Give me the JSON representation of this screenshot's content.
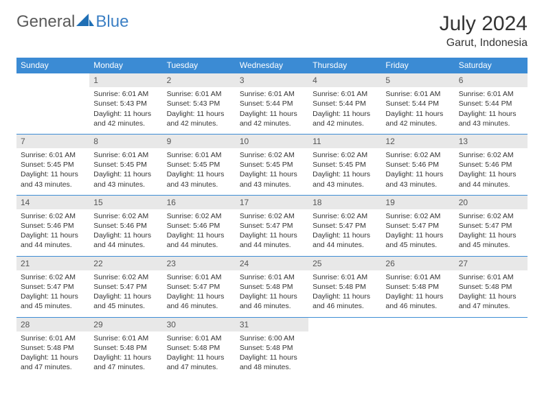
{
  "brand": {
    "general": "General",
    "blue": "Blue"
  },
  "title": "July 2024",
  "location": "Garut, Indonesia",
  "colors": {
    "header_bg": "#3b8bd4",
    "header_text": "#ffffff",
    "daynum_bg": "#e8e8e8",
    "week_border": "#3b8bd4",
    "logo_gray": "#5a5a5a",
    "logo_blue": "#3b7fc4",
    "body_text": "#333333",
    "background": "#ffffff"
  },
  "day_headers": [
    "Sunday",
    "Monday",
    "Tuesday",
    "Wednesday",
    "Thursday",
    "Friday",
    "Saturday"
  ],
  "labels": {
    "sunrise_prefix": "Sunrise: ",
    "sunset_prefix": "Sunset: ",
    "daylight_prefix": "Daylight: "
  },
  "weeks": [
    [
      null,
      {
        "n": "1",
        "sr": "6:01 AM",
        "ss": "5:43 PM",
        "dl": "11 hours and 42 minutes."
      },
      {
        "n": "2",
        "sr": "6:01 AM",
        "ss": "5:43 PM",
        "dl": "11 hours and 42 minutes."
      },
      {
        "n": "3",
        "sr": "6:01 AM",
        "ss": "5:44 PM",
        "dl": "11 hours and 42 minutes."
      },
      {
        "n": "4",
        "sr": "6:01 AM",
        "ss": "5:44 PM",
        "dl": "11 hours and 42 minutes."
      },
      {
        "n": "5",
        "sr": "6:01 AM",
        "ss": "5:44 PM",
        "dl": "11 hours and 42 minutes."
      },
      {
        "n": "6",
        "sr": "6:01 AM",
        "ss": "5:44 PM",
        "dl": "11 hours and 43 minutes."
      }
    ],
    [
      {
        "n": "7",
        "sr": "6:01 AM",
        "ss": "5:45 PM",
        "dl": "11 hours and 43 minutes."
      },
      {
        "n": "8",
        "sr": "6:01 AM",
        "ss": "5:45 PM",
        "dl": "11 hours and 43 minutes."
      },
      {
        "n": "9",
        "sr": "6:01 AM",
        "ss": "5:45 PM",
        "dl": "11 hours and 43 minutes."
      },
      {
        "n": "10",
        "sr": "6:02 AM",
        "ss": "5:45 PM",
        "dl": "11 hours and 43 minutes."
      },
      {
        "n": "11",
        "sr": "6:02 AM",
        "ss": "5:45 PM",
        "dl": "11 hours and 43 minutes."
      },
      {
        "n": "12",
        "sr": "6:02 AM",
        "ss": "5:46 PM",
        "dl": "11 hours and 43 minutes."
      },
      {
        "n": "13",
        "sr": "6:02 AM",
        "ss": "5:46 PM",
        "dl": "11 hours and 44 minutes."
      }
    ],
    [
      {
        "n": "14",
        "sr": "6:02 AM",
        "ss": "5:46 PM",
        "dl": "11 hours and 44 minutes."
      },
      {
        "n": "15",
        "sr": "6:02 AM",
        "ss": "5:46 PM",
        "dl": "11 hours and 44 minutes."
      },
      {
        "n": "16",
        "sr": "6:02 AM",
        "ss": "5:46 PM",
        "dl": "11 hours and 44 minutes."
      },
      {
        "n": "17",
        "sr": "6:02 AM",
        "ss": "5:47 PM",
        "dl": "11 hours and 44 minutes."
      },
      {
        "n": "18",
        "sr": "6:02 AM",
        "ss": "5:47 PM",
        "dl": "11 hours and 44 minutes."
      },
      {
        "n": "19",
        "sr": "6:02 AM",
        "ss": "5:47 PM",
        "dl": "11 hours and 45 minutes."
      },
      {
        "n": "20",
        "sr": "6:02 AM",
        "ss": "5:47 PM",
        "dl": "11 hours and 45 minutes."
      }
    ],
    [
      {
        "n": "21",
        "sr": "6:02 AM",
        "ss": "5:47 PM",
        "dl": "11 hours and 45 minutes."
      },
      {
        "n": "22",
        "sr": "6:02 AM",
        "ss": "5:47 PM",
        "dl": "11 hours and 45 minutes."
      },
      {
        "n": "23",
        "sr": "6:01 AM",
        "ss": "5:47 PM",
        "dl": "11 hours and 46 minutes."
      },
      {
        "n": "24",
        "sr": "6:01 AM",
        "ss": "5:48 PM",
        "dl": "11 hours and 46 minutes."
      },
      {
        "n": "25",
        "sr": "6:01 AM",
        "ss": "5:48 PM",
        "dl": "11 hours and 46 minutes."
      },
      {
        "n": "26",
        "sr": "6:01 AM",
        "ss": "5:48 PM",
        "dl": "11 hours and 46 minutes."
      },
      {
        "n": "27",
        "sr": "6:01 AM",
        "ss": "5:48 PM",
        "dl": "11 hours and 47 minutes."
      }
    ],
    [
      {
        "n": "28",
        "sr": "6:01 AM",
        "ss": "5:48 PM",
        "dl": "11 hours and 47 minutes."
      },
      {
        "n": "29",
        "sr": "6:01 AM",
        "ss": "5:48 PM",
        "dl": "11 hours and 47 minutes."
      },
      {
        "n": "30",
        "sr": "6:01 AM",
        "ss": "5:48 PM",
        "dl": "11 hours and 47 minutes."
      },
      {
        "n": "31",
        "sr": "6:00 AM",
        "ss": "5:48 PM",
        "dl": "11 hours and 48 minutes."
      },
      null,
      null,
      null
    ]
  ]
}
